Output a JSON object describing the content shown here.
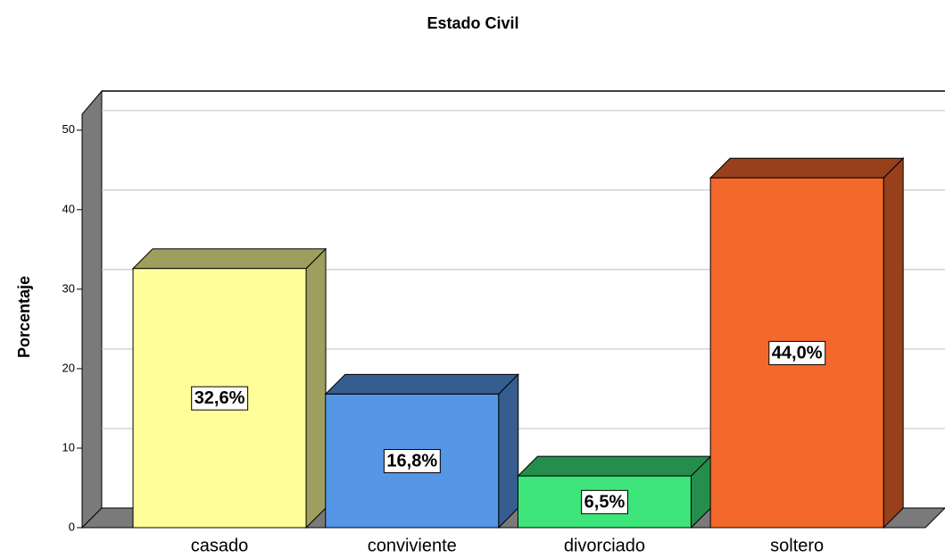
{
  "chart_data": {
    "type": "bar",
    "title": "Estado Civil",
    "ylabel": "Porcentaje",
    "categories": [
      "casado",
      "conviviente",
      "divorciado",
      "soltero"
    ],
    "values": [
      32.6,
      16.8,
      6.5,
      44.0
    ],
    "value_labels": [
      "32,6%",
      "16,8%",
      "6,5%",
      "44,0%"
    ],
    "colors": [
      "#ffff99",
      "#5596e6",
      "#3ee57a",
      "#f4682c"
    ],
    "ylim": [
      0,
      52
    ],
    "yticks": [
      0,
      10,
      20,
      30,
      40,
      50
    ],
    "grid": true
  }
}
